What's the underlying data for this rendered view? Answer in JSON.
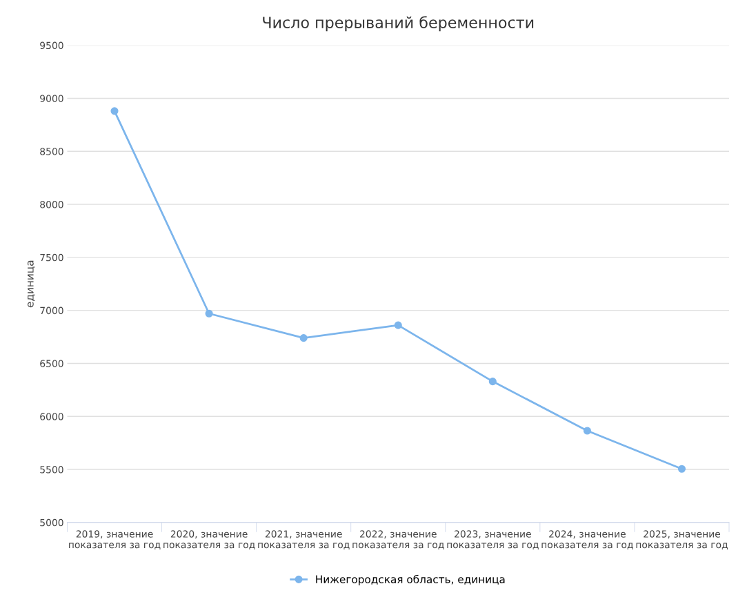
{
  "chart_data": {
    "type": "line",
    "title": "Число прерываний беременности",
    "ylabel": "единица",
    "categories": [
      "2019, значение\nпоказателя за год",
      "2020, значение\nпоказателя за год",
      "2021, значение\nпоказателя за год",
      "2022, значение\nпоказателя за год",
      "2023, значение\nпоказателя за год",
      "2024, значение\nпоказателя за год",
      "2025, значение\nпоказателя за год"
    ],
    "series": [
      {
        "name": "Нижегородская область, единица",
        "color": "#7cb5ec",
        "values": [
          8880,
          6970,
          6740,
          6860,
          6330,
          5865,
          5505
        ]
      }
    ],
    "ylim": [
      5000,
      9500
    ],
    "yticks": [
      5000,
      5500,
      6000,
      6500,
      7000,
      7500,
      8000,
      8500,
      9000,
      9500
    ],
    "grid": "y",
    "legend": "bottom",
    "marker": "circle",
    "line_style": "solid"
  }
}
